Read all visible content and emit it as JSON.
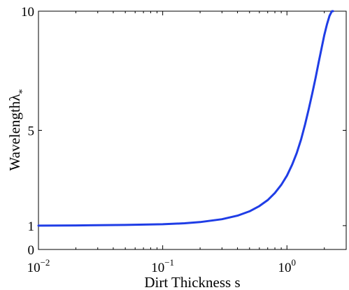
{
  "chart_data": {
    "type": "line",
    "title": "",
    "xlabel": "Dirt Thickness s",
    "ylabel_text": "Wavelength",
    "ylabel_symbol": "λ",
    "ylabel_subscript": "*",
    "x_scale": "log",
    "y_scale": "linear",
    "xlim": [
      0.01,
      3
    ],
    "ylim": [
      0,
      10
    ],
    "x_ticks": [
      {
        "value": 0.01,
        "base": "10",
        "exp": "−2"
      },
      {
        "value": 0.1,
        "base": "10",
        "exp": "−1"
      },
      {
        "value": 1,
        "base": "10",
        "exp": "0"
      }
    ],
    "y_ticks": [
      {
        "value": 0,
        "label": "0"
      },
      {
        "value": 1,
        "label": "1"
      },
      {
        "value": 5,
        "label": "5"
      },
      {
        "value": 10,
        "label": "10"
      }
    ],
    "grid": false,
    "legend": "none",
    "series": [
      {
        "color": "#1f3de6",
        "x": [
          0.01,
          0.02,
          0.05,
          0.1,
          0.15,
          0.2,
          0.3,
          0.4,
          0.5,
          0.6,
          0.7,
          0.8,
          0.9,
          1.0,
          1.1,
          1.2,
          1.3,
          1.4,
          1.5,
          1.6,
          1.7,
          1.8,
          1.9,
          2.0,
          2.1,
          2.2,
          2.3,
          2.35
        ],
        "y": [
          1.0,
          1.01,
          1.03,
          1.06,
          1.1,
          1.15,
          1.27,
          1.42,
          1.6,
          1.82,
          2.07,
          2.37,
          2.71,
          3.1,
          3.55,
          4.05,
          4.62,
          5.25,
          5.9,
          6.55,
          7.2,
          7.85,
          8.45,
          9.0,
          9.45,
          9.8,
          10.0,
          10.0
        ]
      }
    ]
  }
}
